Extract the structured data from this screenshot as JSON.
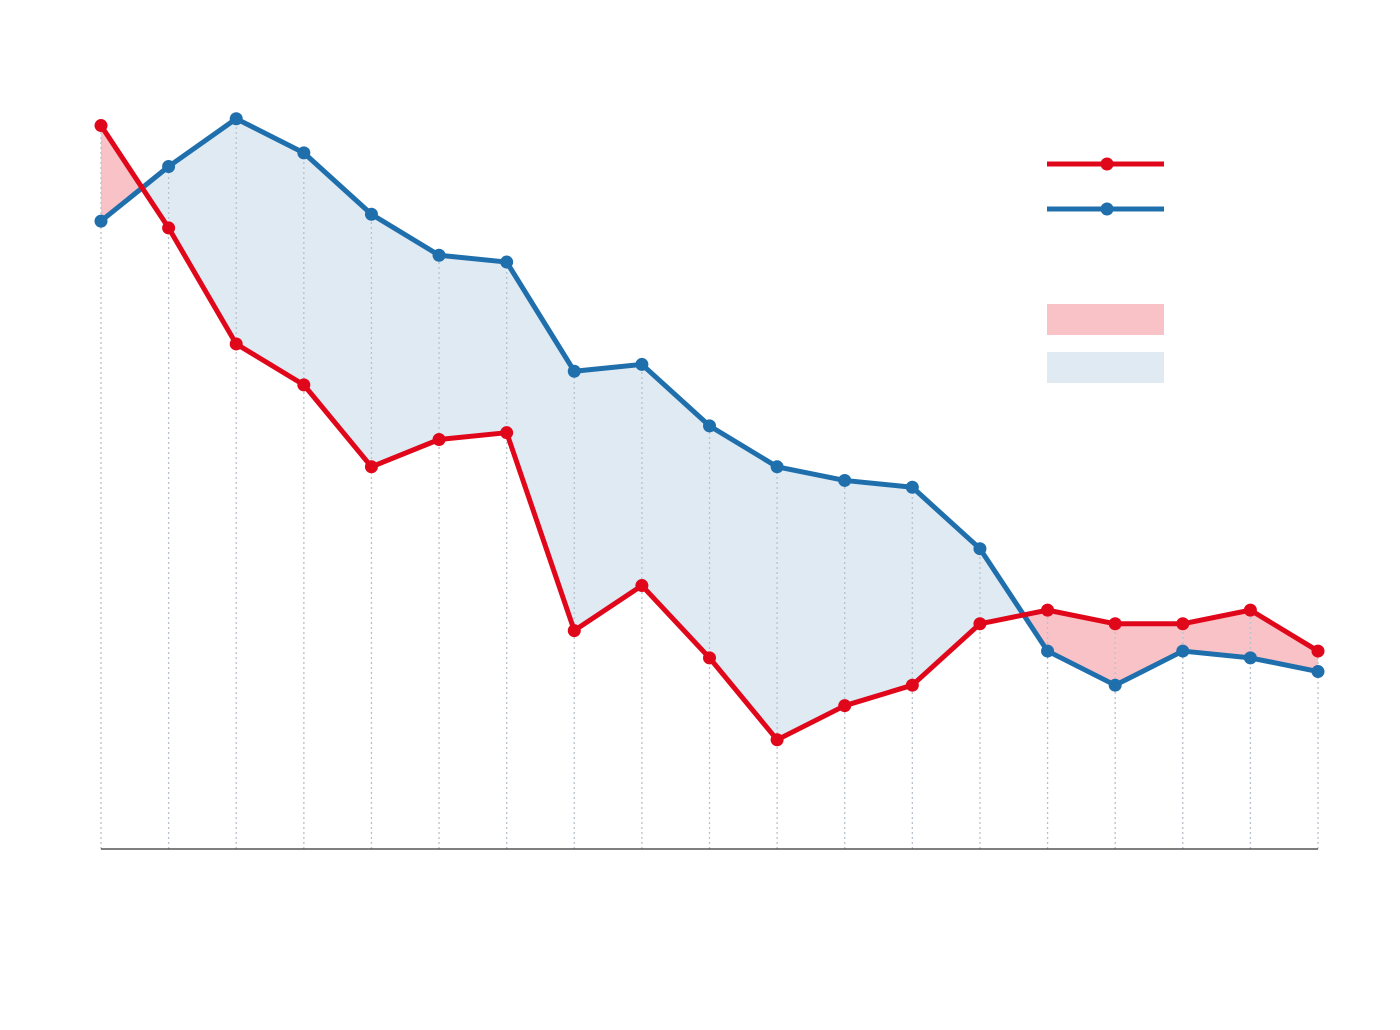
{
  "chart_data": {
    "type": "line",
    "x": [
      1,
      2,
      3,
      4,
      5,
      6,
      7,
      8,
      9,
      10,
      11,
      12,
      13,
      14,
      15,
      16,
      17,
      18,
      19
    ],
    "ylim": [
      0,
      60
    ],
    "series": [
      {
        "key": "red",
        "color": "#e0071b",
        "values": [
          53,
          45.5,
          37,
          34,
          28,
          30,
          30.5,
          16,
          19.3,
          14,
          8,
          10.5,
          12,
          16.5,
          17.5,
          16.5,
          16.5,
          17.5,
          14.5
        ]
      },
      {
        "key": "blue",
        "color": "#1f6fad",
        "values": [
          46,
          50,
          53.5,
          51,
          46.5,
          43.5,
          43,
          35,
          35.5,
          31,
          28,
          27,
          26.5,
          22,
          14.5,
          12,
          14.5,
          14,
          13
        ]
      }
    ],
    "fill_colors": {
      "red_above": "#f8c2c7",
      "blue_above": "#dfeaf3"
    },
    "grid": {
      "vertical": true,
      "horizontal": false
    },
    "legend_position": "top-right",
    "title": "",
    "xlabel": "",
    "ylabel": ""
  }
}
